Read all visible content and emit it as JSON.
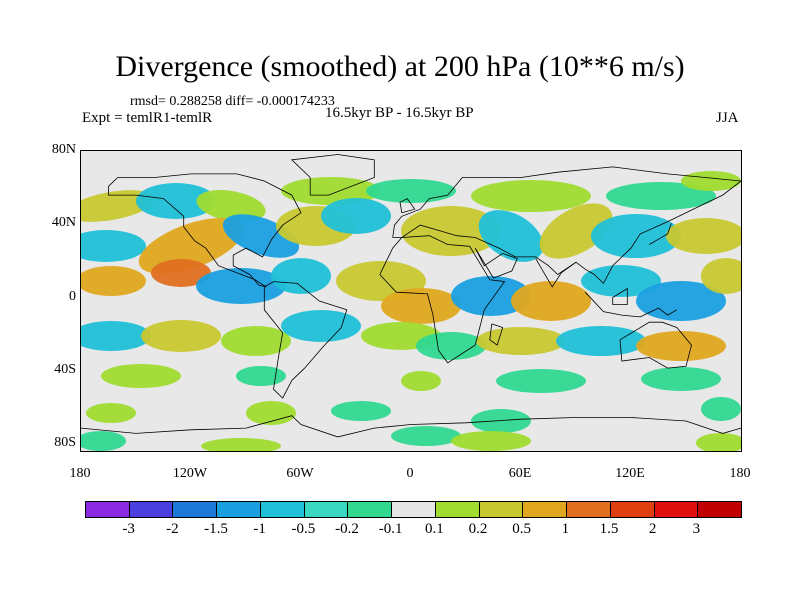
{
  "title": "Divergence (smoothed) at 200 hPa (10**6 m/s)",
  "stats": "rmsd= 0.288258 diff= -0.000174233",
  "experiment": "Expt = temlR1-temlR",
  "period": "16.5kyr BP - 16.5kyr BP",
  "season": "JJA",
  "lat_labels": [
    "80N",
    "40N",
    "0",
    "40S",
    "80S"
  ],
  "lon_labels": [
    "180",
    "120W",
    "60W",
    "0",
    "60E",
    "120E",
    "180"
  ],
  "colorbar": {
    "labels": [
      "-3",
      "-2",
      "-1.5",
      "-1",
      "-0.5",
      "-0.2",
      "-0.1",
      "0.1",
      "0.2",
      "0.5",
      "1",
      "1.5",
      "2",
      "3"
    ],
    "colors": [
      "#8a2be2",
      "#4b3fe0",
      "#1e78d8",
      "#1aa0e0",
      "#20c0d8",
      "#38d8c0",
      "#30d890",
      "#e6e6e6",
      "#a0dc30",
      "#c8c830",
      "#e0a820",
      "#e07020",
      "#e04010",
      "#e01010",
      "#c00000"
    ]
  },
  "map_colors": {
    "neutral": "#e8e8e8",
    "neg_weak": "#30d890",
    "neg_mid": "#20c0d8",
    "neg_strong": "#1aa0e0",
    "neg_max": "#1e78d8",
    "pos_weak": "#a0dc30",
    "pos_mid": "#c8c830",
    "pos_strong": "#e0a820",
    "pos_max": "#e07020"
  }
}
